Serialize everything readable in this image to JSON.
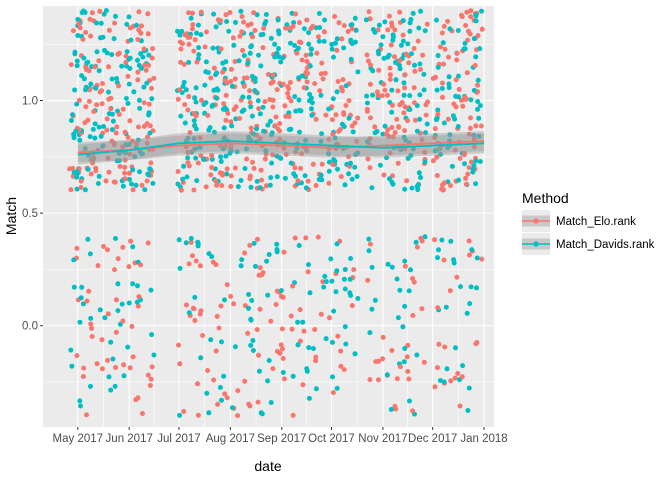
{
  "chart_data": {
    "type": "scatter",
    "xlabel": "date",
    "ylabel": "Match",
    "x_ticks": [
      "May 2017",
      "Jun 2017",
      "Jul 2017",
      "Aug 2017",
      "Sep 2017",
      "Oct 2017",
      "Nov 2017",
      "Dec 2017",
      "Jan 2018"
    ],
    "x_range": [
      "2017-04-10",
      "2018-01-07"
    ],
    "y_ticks": [
      0.0,
      0.5,
      1.0
    ],
    "y_ticks_labels": [
      "0.0",
      "0.5",
      "1.0"
    ],
    "y_range": [
      -0.45,
      1.42
    ],
    "grid": true,
    "legend": {
      "title": "Method",
      "position": "right",
      "entries": [
        "Match_Elo.rank",
        "Match_Davids.rank"
      ]
    },
    "date_gaps": [
      [
        "2017-06-16",
        "2017-06-30"
      ],
      [
        "2017-10-17",
        "2017-10-22"
      ],
      [
        "2017-11-28",
        "2017-12-01"
      ]
    ],
    "point_bands": [
      [
        -0.4,
        0.4
      ],
      [
        0.6,
        1.4
      ]
    ],
    "series": [
      {
        "name": "Match_Elo.rank",
        "color": "#F8766D",
        "points_in_upper_band": 0.75,
        "smooth": [
          [
            "2017-05-01",
            0.77
          ],
          [
            "2017-06-01",
            0.78
          ],
          [
            "2017-07-01",
            0.8
          ],
          [
            "2017-08-01",
            0.81
          ],
          [
            "2017-09-01",
            0.8
          ],
          [
            "2017-10-01",
            0.79
          ],
          [
            "2017-11-01",
            0.8
          ],
          [
            "2017-12-01",
            0.81
          ],
          [
            "2018-01-01",
            0.82
          ]
        ]
      },
      {
        "name": "Match_Davids.rank",
        "color": "#00BFC4",
        "points_in_upper_band": 0.8,
        "smooth": [
          [
            "2017-05-01",
            0.76
          ],
          [
            "2017-06-01",
            0.78
          ],
          [
            "2017-07-01",
            0.81
          ],
          [
            "2017-08-01",
            0.82
          ],
          [
            "2017-09-01",
            0.81
          ],
          [
            "2017-10-01",
            0.8
          ],
          [
            "2017-11-01",
            0.79
          ],
          [
            "2017-12-01",
            0.8
          ],
          [
            "2018-01-01",
            0.81
          ]
        ]
      }
    ]
  }
}
